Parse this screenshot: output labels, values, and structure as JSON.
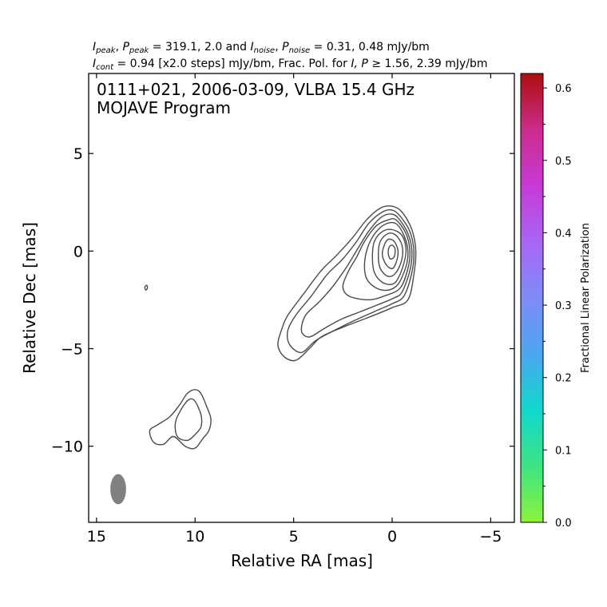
{
  "chart_data": {
    "type": "contour",
    "header": {
      "line1": {
        "i_peak_label": "I",
        "i_peak_sub": "peak",
        "p_peak_label": "P",
        "p_peak_sub": "peak",
        "peak_values": "= 319.1, 2.0 and",
        "i_noise_label": "I",
        "i_noise_sub": "noise",
        "p_noise_label": "P",
        "p_noise_sub": "noise",
        "noise_values": "= 0.31, 0.48 mJy/bm"
      },
      "line2": {
        "i_cont_label": "I",
        "i_cont_sub": "cont",
        "cont_text": "= 0.94 [x2.0 steps] mJy/bm, Frac. Pol. for",
        "ip_text": "I, P",
        "threshold_text": "≥  1.56, 2.39 mJy/bm"
      }
    },
    "title_line1": "0111+021, 2006-03-09, VLBA 15.4 GHz",
    "title_line2": "MOJAVE Program",
    "xlabel": "Relative RA [mas]",
    "ylabel": "Relative Dec [mas]",
    "xlim": [
      15.4,
      -6.2
    ],
    "ylim": [
      -13.9,
      9.1
    ],
    "xticks": [
      15,
      10,
      5,
      0,
      -5
    ],
    "xtick_labels": [
      "15",
      "10",
      "5",
      "0",
      "−5"
    ],
    "yticks": [
      5,
      0,
      -5,
      -10
    ],
    "ytick_labels": [
      "5",
      "0",
      "−5",
      "−10"
    ],
    "contour_base_mJy_per_beam": 0.94,
    "contour_step_factor": 2.0,
    "beam": {
      "ra": 13.9,
      "dec": -12.2,
      "major_mas": 1.55,
      "minor_mas": 0.8,
      "pa_deg": 0,
      "color": "#808080"
    },
    "contours": [
      {
        "name": "core-level-1",
        "points": [
          [
            -0.8,
            -2.5
          ],
          [
            -1.1,
            -1.2
          ],
          [
            -1.2,
            0
          ],
          [
            -1.0,
            1.1
          ],
          [
            -0.5,
            2.0
          ],
          [
            0,
            2.3
          ],
          [
            0.6,
            2.2
          ],
          [
            1.3,
            1.6
          ],
          [
            2.0,
            0.7
          ],
          [
            2.8,
            -0.2
          ],
          [
            3.6,
            -1.0
          ],
          [
            4.5,
            -2.2
          ],
          [
            5.3,
            -3.3
          ],
          [
            5.6,
            -4.0
          ],
          [
            5.8,
            -4.8
          ],
          [
            5.5,
            -5.4
          ],
          [
            4.9,
            -5.6
          ],
          [
            4.2,
            -5.0
          ],
          [
            3.6,
            -4.4
          ],
          [
            2.5,
            -3.9
          ],
          [
            1.2,
            -3.4
          ],
          [
            0,
            -2.9
          ]
        ]
      },
      {
        "name": "core-level-2",
        "points": [
          [
            -0.6,
            -2.3
          ],
          [
            -1.0,
            -1.1
          ],
          [
            -1.1,
            0
          ],
          [
            -0.9,
            1.0
          ],
          [
            -0.4,
            1.8
          ],
          [
            0,
            2.1
          ],
          [
            0.5,
            2.0
          ],
          [
            1.2,
            1.4
          ],
          [
            1.8,
            0.5
          ],
          [
            2.5,
            -0.4
          ],
          [
            3.3,
            -1.2
          ],
          [
            4.1,
            -2.3
          ],
          [
            4.9,
            -3.3
          ],
          [
            5.3,
            -4.1
          ],
          [
            5.2,
            -4.8
          ],
          [
            4.6,
            -5.2
          ],
          [
            3.9,
            -4.6
          ],
          [
            3.0,
            -4.1
          ],
          [
            2.0,
            -3.6
          ],
          [
            0.9,
            -3.1
          ],
          [
            0,
            -2.7
          ]
        ]
      },
      {
        "name": "core-level-3",
        "points": [
          [
            -0.5,
            -2.1
          ],
          [
            -0.9,
            -1.0
          ],
          [
            -1.0,
            0
          ],
          [
            -0.8,
            0.9
          ],
          [
            -0.3,
            1.7
          ],
          [
            0.1,
            1.9
          ],
          [
            0.6,
            1.7
          ],
          [
            1.2,
            1.0
          ],
          [
            1.7,
            0.2
          ],
          [
            2.3,
            -0.8
          ],
          [
            3.0,
            -1.8
          ],
          [
            3.7,
            -2.6
          ],
          [
            4.4,
            -3.3
          ],
          [
            4.6,
            -4.1
          ],
          [
            4.2,
            -4.4
          ],
          [
            3.5,
            -4.0
          ],
          [
            2.6,
            -3.5
          ],
          [
            1.6,
            -3.1
          ],
          [
            0.6,
            -2.7
          ],
          [
            -0.1,
            -2.4
          ]
        ]
      },
      {
        "name": "core-level-4",
        "points": [
          [
            -0.4,
            -1.9
          ],
          [
            -0.8,
            -0.9
          ],
          [
            -0.9,
            0
          ],
          [
            -0.7,
            0.9
          ],
          [
            -0.2,
            1.6
          ],
          [
            0.2,
            1.6
          ],
          [
            0.8,
            1.3
          ],
          [
            1.4,
            0.5
          ],
          [
            1.8,
            -0.3
          ],
          [
            2.2,
            -1.0
          ],
          [
            2.5,
            -1.8
          ],
          [
            2.2,
            -2.3
          ],
          [
            1.2,
            -2.5
          ],
          [
            0.4,
            -2.3
          ]
        ]
      },
      {
        "name": "core-level-5",
        "points": [
          [
            -0.3,
            -1.7
          ],
          [
            -0.7,
            -0.8
          ],
          [
            -0.8,
            0
          ],
          [
            -0.6,
            0.8
          ],
          [
            -0.2,
            1.4
          ],
          [
            0.3,
            1.4
          ],
          [
            0.8,
            1.0
          ],
          [
            1.2,
            0.3
          ],
          [
            1.4,
            -0.6
          ],
          [
            1.3,
            -1.4
          ],
          [
            0.8,
            -1.9
          ],
          [
            0.2,
            -2.0
          ]
        ]
      },
      {
        "name": "core-level-6",
        "points": [
          [
            -0.3,
            -1.4
          ],
          [
            -0.6,
            -0.6
          ],
          [
            -0.7,
            0.1
          ],
          [
            -0.5,
            0.8
          ],
          [
            0,
            1.1
          ],
          [
            0.5,
            1.0
          ],
          [
            0.9,
            0.5
          ],
          [
            1.0,
            -0.3
          ],
          [
            0.9,
            -1.1
          ],
          [
            0.5,
            -1.6
          ],
          [
            0,
            -1.7
          ]
        ]
      },
      {
        "name": "core-level-7",
        "points": [
          [
            -0.2,
            -1.1
          ],
          [
            -0.5,
            -0.4
          ],
          [
            -0.5,
            0.3
          ],
          [
            -0.2,
            0.8
          ],
          [
            0.2,
            0.9
          ],
          [
            0.6,
            0.5
          ],
          [
            0.7,
            -0.2
          ],
          [
            0.6,
            -0.9
          ],
          [
            0.2,
            -1.3
          ]
        ]
      },
      {
        "name": "core-level-8",
        "points": [
          [
            -0.2,
            -0.6
          ],
          [
            -0.3,
            0
          ],
          [
            -0.1,
            0.5
          ],
          [
            0.2,
            0.6
          ],
          [
            0.4,
            0.3
          ],
          [
            0.5,
            -0.2
          ],
          [
            0.3,
            -0.7
          ],
          [
            0,
            -0.9
          ]
        ]
      },
      {
        "name": "core-level-9",
        "points": [
          [
            -0.1,
            -0.3
          ],
          [
            -0.15,
            0.1
          ],
          [
            0,
            0.3
          ],
          [
            0.15,
            0.2
          ],
          [
            0.2,
            -0.1
          ],
          [
            0.1,
            -0.4
          ]
        ]
      },
      {
        "name": "south-component-outer",
        "points": [
          [
            9.4,
            -8.0
          ],
          [
            9.7,
            -7.3
          ],
          [
            10.0,
            -7.1
          ],
          [
            10.4,
            -7.3
          ],
          [
            10.8,
            -7.9
          ],
          [
            11.3,
            -8.5
          ],
          [
            11.9,
            -8.9
          ],
          [
            12.3,
            -9.2
          ],
          [
            12.1,
            -9.8
          ],
          [
            11.6,
            -9.9
          ],
          [
            11.1,
            -9.5
          ],
          [
            10.5,
            -10.0
          ],
          [
            10.0,
            -10.1
          ],
          [
            9.6,
            -9.6
          ],
          [
            9.3,
            -9.2
          ],
          [
            9.2,
            -8.6
          ]
        ]
      },
      {
        "name": "south-component-inner",
        "points": [
          [
            9.7,
            -8.4
          ],
          [
            10.0,
            -7.7
          ],
          [
            10.3,
            -7.6
          ],
          [
            10.7,
            -8.1
          ],
          [
            11.0,
            -8.8
          ],
          [
            10.9,
            -9.5
          ],
          [
            10.4,
            -9.7
          ],
          [
            10.0,
            -9.4
          ],
          [
            9.7,
            -9.0
          ]
        ]
      },
      {
        "name": "isolated-speck",
        "points": [
          [
            12.45,
            -1.75
          ],
          [
            12.55,
            -1.85
          ],
          [
            12.5,
            -2.0
          ],
          [
            12.42,
            -1.9
          ]
        ]
      }
    ],
    "colorbar": {
      "label": "Fractional Linear Polarization",
      "ticks": [
        0.0,
        0.1,
        0.2,
        0.3,
        0.4,
        0.5,
        0.6
      ],
      "tick_labels": [
        "0.0",
        "0.1",
        "0.2",
        "0.3",
        "0.4",
        "0.5",
        "0.6"
      ],
      "range": [
        0.0,
        0.62
      ],
      "gradient": [
        "#8cf23c",
        "#3ee483",
        "#10d8cc",
        "#4ba6f0",
        "#7f8cf8",
        "#a866f5",
        "#c83ad7",
        "#cc2b8c",
        "#ad0e0e"
      ]
    }
  }
}
